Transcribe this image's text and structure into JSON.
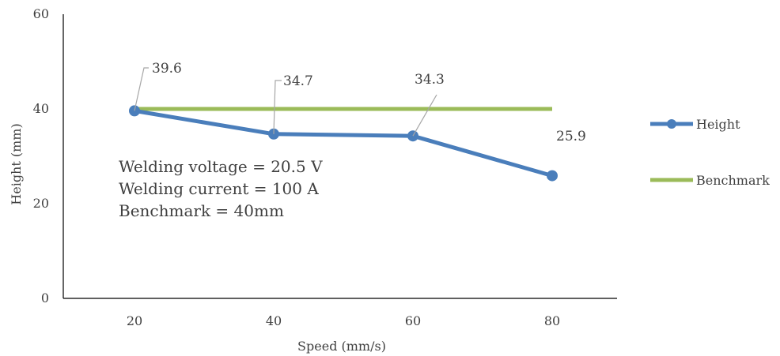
{
  "chart_data": {
    "type": "line",
    "x": [
      20,
      40,
      60,
      80
    ],
    "xlabel": "Speed  (mm/s)",
    "ylabel": "Height (mm)",
    "ylim": [
      0,
      60
    ],
    "yticks": [
      0,
      20,
      40,
      60
    ],
    "xticks": [
      20,
      40,
      60,
      80
    ],
    "grid": false,
    "legend_position": "right",
    "series": [
      {
        "name": "Height",
        "values": [
          39.6,
          34.7,
          34.3,
          25.9
        ],
        "color": "#4a7ebb",
        "markers": true,
        "data_labels": [
          "39.6",
          "34.7",
          "34.3",
          "25.9"
        ]
      },
      {
        "name": "Benchmark",
        "values": [
          40,
          40,
          40,
          40
        ],
        "color": "#9bbb59",
        "markers": false
      }
    ],
    "annotations": [
      "Welding voltage = 20.5 V",
      "Welding current = 100 A",
      "Benchmark = 40mm"
    ]
  }
}
